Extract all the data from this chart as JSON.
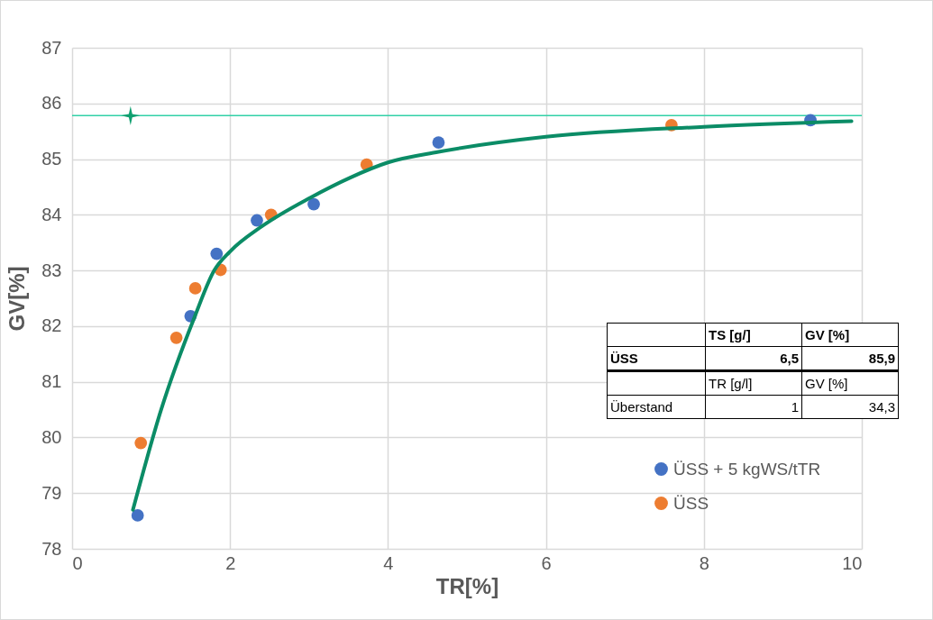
{
  "chart_data": {
    "type": "scatter",
    "xlabel": "TR[%]",
    "ylabel": "GV[%]",
    "xlim": [
      0,
      10
    ],
    "xticks": [
      0,
      2,
      4,
      6,
      8,
      10
    ],
    "ylim": [
      78,
      87
    ],
    "yticks": [
      78,
      79,
      80,
      81,
      82,
      83,
      84,
      85,
      86,
      87
    ],
    "grid": true,
    "legend": "bottom right",
    "marker": "circle",
    "series": [
      {
        "name": "ÜSS  + 5 kgWS/tTR",
        "color": "#4472c4",
        "x": [
          0.83,
          1.5,
          1.83,
          2.34,
          3.06,
          4.64,
          9.35
        ],
        "values": [
          78.6,
          82.18,
          83.3,
          83.9,
          84.19,
          85.3,
          85.7
        ]
      },
      {
        "name": "ÜSS",
        "color": "#ed7d31",
        "x": [
          0.87,
          1.32,
          1.56,
          1.88,
          2.52,
          3.73,
          7.59
        ],
        "values": [
          79.9,
          81.79,
          82.68,
          83.01,
          84.0,
          84.9,
          85.61
        ]
      },
      {
        "type": "line",
        "marker": "none",
        "color": "#0b8c66",
        "x": [
          0.77,
          1.13,
          1.55,
          1.8,
          2.0,
          2.39,
          3.02,
          3.51,
          4.0,
          4.64,
          6.0,
          8.0,
          9.87
        ],
        "values": [
          78.7,
          80.51,
          82.16,
          83.0,
          83.34,
          83.78,
          84.31,
          84.66,
          84.94,
          85.13,
          85.4,
          85.58,
          85.68
        ]
      },
      {
        "type": "scatter",
        "marker": "star",
        "color": "#10a070",
        "x": [
          0.74
        ],
        "values": [
          85.78
        ]
      }
    ],
    "ref_lines": [
      {
        "axis": "y",
        "value": 85.78,
        "color": "#33d1a7"
      }
    ],
    "annotations": [
      "TS [g/]",
      "GV [%]",
      "ÜSS",
      "6,5",
      "85,9",
      "TR [g/l]",
      "GV [%]",
      "Überstand",
      "1",
      "34,3"
    ]
  }
}
